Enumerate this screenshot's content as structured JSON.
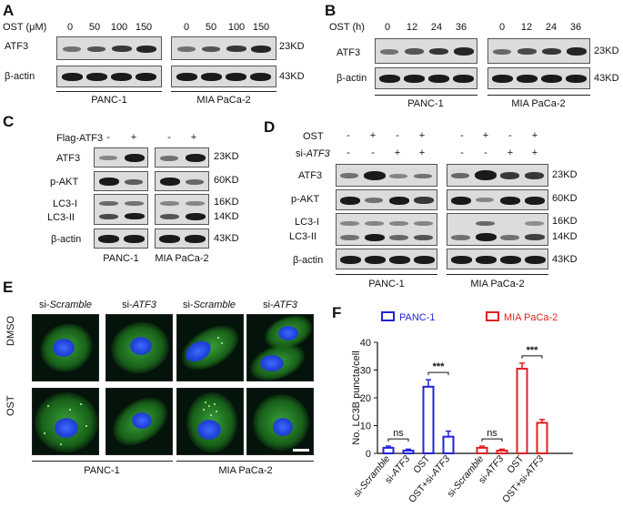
{
  "panelA": {
    "letter": "A",
    "treatment_label": "OST (μM)",
    "doses": [
      "0",
      "50",
      "100",
      "150"
    ],
    "row_labels": [
      "ATF3",
      "β-actin"
    ],
    "kd": [
      "23KD",
      "43KD"
    ],
    "cell_lines": [
      "PANC-1",
      "MIA PaCa-2"
    ]
  },
  "panelB": {
    "letter": "B",
    "treatment_label": "OST (h)",
    "times": [
      "0",
      "12",
      "24",
      "36"
    ],
    "row_labels": [
      "ATF3",
      "β-actin"
    ],
    "kd": [
      "23KD",
      "43KD"
    ],
    "cell_lines": [
      "PANC-1",
      "MIA PaCa-2"
    ]
  },
  "panelC": {
    "letter": "C",
    "treatment_label": "Flag-ATF3",
    "signs": [
      "-",
      "+"
    ],
    "row_labels": [
      "ATF3",
      "p-AKT",
      "LC3-I",
      "LC3-II",
      "β-actin"
    ],
    "kd": [
      "23KD",
      "60KD",
      "16KD",
      "14KD",
      "43KD"
    ],
    "cell_lines": [
      "PANC-1",
      "MIA PaCa-2"
    ]
  },
  "panelD": {
    "letter": "D",
    "treatments": [
      {
        "label": "OST",
        "signs": [
          "-",
          "+",
          "-",
          "+"
        ]
      },
      {
        "label_prefix": "si-",
        "label_italic": "ATF3",
        "signs": [
          "-",
          "-",
          "+",
          "+"
        ]
      }
    ],
    "row_labels": [
      "ATF3",
      "p-AKT",
      "LC3-I",
      "LC3-II",
      "β-actin"
    ],
    "kd": [
      "23KD",
      "60KD",
      "16KD",
      "14KD",
      "43KD"
    ],
    "cell_lines": [
      "PANC-1",
      "MIA PaCa-2"
    ]
  },
  "panelE": {
    "letter": "E",
    "columns": [
      {
        "prefix": "si-",
        "italic": "Scramble"
      },
      {
        "prefix": "si-",
        "italic": "ATF3"
      },
      {
        "prefix": "si-",
        "italic": "Scramble"
      },
      {
        "prefix": "si-",
        "italic": "ATF3"
      }
    ],
    "rows": [
      "DMSO",
      "OST"
    ],
    "cell_lines": [
      "PANC-1",
      "MIA PaCa-2"
    ]
  },
  "panelF": {
    "letter": "F",
    "chart_data": {
      "type": "bar",
      "ylabel": "No. LC3B puncta/cell",
      "ylim": [
        0,
        40
      ],
      "yticks": [
        0,
        10,
        20,
        30,
        40
      ],
      "legend": [
        {
          "name": "PANC-1",
          "color": "#2323d6"
        },
        {
          "name": "MIA PaCa-2",
          "color": "#e02020"
        }
      ],
      "groups": [
        {
          "name": "PANC-1",
          "color": "#2323d6",
          "bars": [
            {
              "prefix": "si-",
              "italic": "Scramble",
              "value": 2.0,
              "error": 0.6
            },
            {
              "prefix": "si-",
              "italic": "ATF3",
              "value": 1.0,
              "error": 0.5
            },
            {
              "prefix": "OST",
              "italic": "",
              "value": 24.0,
              "error": 2.5
            },
            {
              "prefix": "OST+si-",
              "italic": "ATF3",
              "value": 6.0,
              "error": 2.0
            }
          ],
          "sig": [
            {
              "from": 0,
              "to": 1,
              "label": "ns"
            },
            {
              "from": 2,
              "to": 3,
              "label": "***"
            }
          ]
        },
        {
          "name": "MIA PaCa-2",
          "color": "#e02020",
          "bars": [
            {
              "prefix": "si-",
              "italic": "Scramble",
              "value": 2.0,
              "error": 0.6
            },
            {
              "prefix": "si-",
              "italic": "ATF3",
              "value": 1.0,
              "error": 0.5
            },
            {
              "prefix": "OST",
              "italic": "",
              "value": 30.5,
              "error": 2.0
            },
            {
              "prefix": "OST+si-",
              "italic": "ATF3",
              "value": 11.0,
              "error": 1.2
            }
          ],
          "sig": [
            {
              "from": 0,
              "to": 1,
              "label": "ns"
            },
            {
              "from": 2,
              "to": 3,
              "label": "***"
            }
          ]
        }
      ]
    }
  }
}
